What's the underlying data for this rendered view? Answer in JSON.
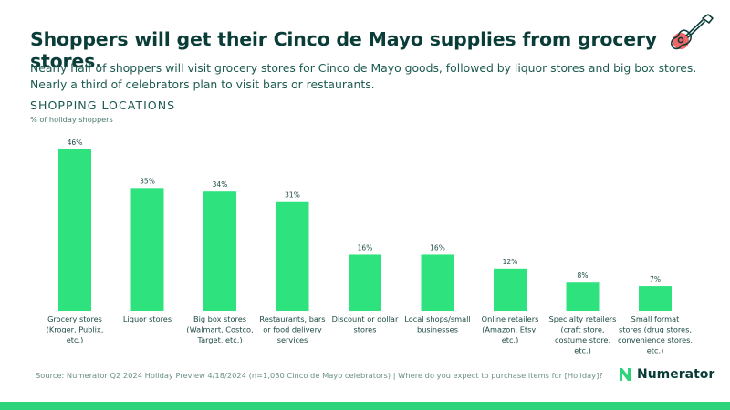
{
  "title": "Shoppers will get their Cinco de Mayo supplies from grocery stores.",
  "subtitle": "Nearly half of shoppers will visit grocery stores for Cinco de Mayo goods, followed by liquor stores and big box stores. Nearly a third of celebrators plan to visit bars or restaurants.",
  "section_title": "SHOPPING LOCATIONS",
  "section_subtitle": "% of holiday shoppers",
  "source": "Source: Numerator Q2 2024 Holiday Preview 4/18/2024 (n=1,030 Cinco de Mayo celebrators) | Where do you expect to purchase items for [Holiday]?",
  "brand": "Numerator",
  "decoration_icon": "guitar-icon",
  "colors": {
    "bar": "#2ee37d",
    "title": "#0b3d38",
    "accent": "#2ed47a",
    "guitar_dot": "#f06565"
  },
  "chart_data": {
    "type": "bar",
    "categories": [
      [
        "Grocery stores",
        "(Kroger, Publix,",
        "etc.)"
      ],
      [
        "Liquor stores"
      ],
      [
        "Big box stores",
        "(Walmart, Costco,",
        "Target, etc.)"
      ],
      [
        "Restaurants, bars",
        "or food delivery",
        "services"
      ],
      [
        "Discount or dollar",
        "stores"
      ],
      [
        "Local shops/small",
        "businesses"
      ],
      [
        "Online retailers",
        "(Amazon, Etsy,",
        "etc.)"
      ],
      [
        "Specialty retailers",
        "(craft store,",
        "costume store,",
        "etc.)"
      ],
      [
        "Small format",
        "stores (drug stores,",
        "convenience stores,",
        "etc.)"
      ]
    ],
    "values": [
      46,
      35,
      34,
      31,
      16,
      16,
      12,
      8,
      7
    ],
    "value_labels": [
      "46%",
      "35%",
      "34%",
      "31%",
      "16%",
      "16%",
      "12%",
      "8%",
      "7%"
    ],
    "ylim": [
      0,
      46
    ],
    "grid": false,
    "legend": "none"
  }
}
